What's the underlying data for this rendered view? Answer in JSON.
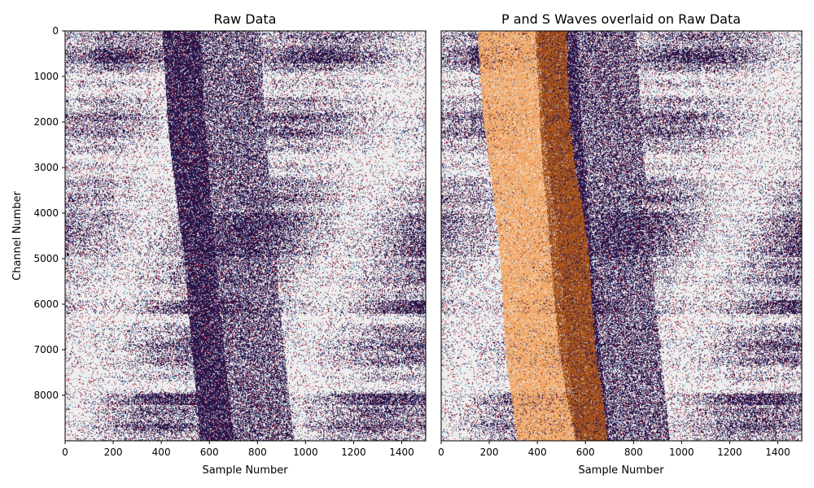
{
  "colors": {
    "noise_light": "#eeeeee",
    "noise_dark": "#2a1448",
    "noise_red": "#b2182b",
    "noise_blue": "#2166ac",
    "p_wave_fill": "#f0a868",
    "s_wave_fill": "#a9561d",
    "frame": "#000000"
  },
  "chart_data": [
    {
      "type": "heatmap",
      "title": "Raw Data",
      "xlabel": "Sample Number",
      "ylabel": "Channel Number",
      "xlim": [
        0,
        1500
      ],
      "ylim": [
        9000,
        0
      ],
      "xticks": [
        0,
        200,
        400,
        600,
        800,
        1000,
        1200,
        1400
      ],
      "yticks": [
        0,
        1000,
        2000,
        3000,
        4000,
        5000,
        6000,
        7000,
        8000
      ],
      "arrival_band": {
        "channels": [
          0,
          1000,
          2000,
          3000,
          4000,
          5000,
          6000,
          7000,
          8000,
          9000
        ],
        "onset_sample": [
          400,
          415,
          425,
          445,
          470,
          495,
          510,
          525,
          545,
          560
        ],
        "end_sample": [
          560,
          570,
          580,
          595,
          610,
          625,
          640,
          660,
          680,
          700
        ]
      },
      "noisy_channel_bands": [
        [
          450,
          700
        ],
        [
          4000,
          4950
        ],
        [
          5900,
          6200
        ],
        [
          7950,
          8200
        ]
      ]
    },
    {
      "type": "heatmap",
      "title": "P and S Waves overlaid on Raw Data",
      "xlabel": "Sample Number",
      "ylabel": "",
      "xlim": [
        0,
        1500
      ],
      "ylim": [
        9000,
        0
      ],
      "xticks": [
        0,
        200,
        400,
        600,
        800,
        1000,
        1200,
        1400
      ],
      "yticks": [],
      "p_wave": {
        "channels": [
          0,
          1000,
          2000,
          3000,
          4000,
          5000,
          6000,
          7000,
          8000,
          9000
        ],
        "start_sample": [
          150,
          160,
          175,
          200,
          225,
          245,
          255,
          265,
          290,
          315
        ],
        "end_sample": [
          390,
          400,
          410,
          420,
          440,
          455,
          470,
          490,
          520,
          560
        ]
      },
      "s_wave": {
        "channels": [
          0,
          1000,
          2000,
          3000,
          4000,
          5000,
          6000,
          7000,
          8000,
          9000
        ],
        "start_sample": [
          390,
          400,
          410,
          420,
          440,
          455,
          470,
          490,
          520,
          560
        ],
        "end_sample": [
          520,
          525,
          535,
          555,
          590,
          615,
          625,
          640,
          670,
          690
        ]
      },
      "noisy_channel_bands": [
        [
          450,
          700
        ],
        [
          4000,
          4950
        ],
        [
          5900,
          6200
        ],
        [
          7950,
          8200
        ]
      ]
    }
  ]
}
